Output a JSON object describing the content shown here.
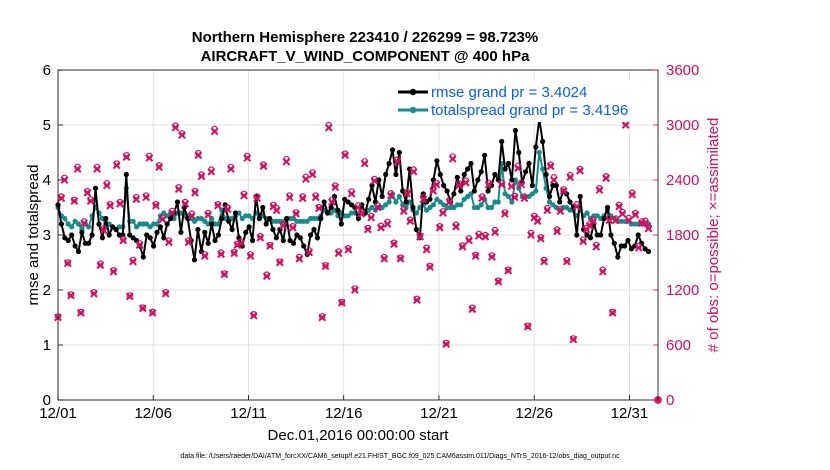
{
  "chart_data": {
    "type": "line",
    "title_line1": "Northern Hemisphere 223410 / 226299 = 98.723%",
    "title_line2": "AIRCRAFT_V_WIND_COMPONENT @ 400 hPa",
    "xlabel": "Dec.01,2016 00:00:00 start",
    "ylabel_left": "rmse and totalspread",
    "ylabel_right": "# of obs: o=possible; ×=assimilated",
    "footer": "data file: /Users/raeder/DAI/ATM_forcXX/CAM6_setup/f.e21.FHIST_BGC.f09_025.CAM6assim.011/Diags_NTrS_2016-12/obs_diag_output.nc",
    "xlim": [
      0,
      31.5
    ],
    "ylim_left": [
      0,
      6
    ],
    "ylim_right": [
      0,
      3600
    ],
    "x_ticks": [
      0,
      5,
      10,
      15,
      20,
      25,
      30
    ],
    "x_tick_labels": [
      "12/01",
      "12/06",
      "12/11",
      "12/16",
      "12/21",
      "12/26",
      "12/31"
    ],
    "y_left_ticks": [
      "0",
      "1",
      "2",
      "3",
      "4",
      "5",
      "6"
    ],
    "y_right_ticks": [
      "0",
      "600",
      "1200",
      "1800",
      "2400",
      "3000",
      "3600"
    ],
    "colors": {
      "rmse": "#000000",
      "spread": "#1a8a8a",
      "obs": "#d01060",
      "legend_text": "#0a5fe0"
    },
    "series": [
      {
        "name": "rmse grand pr = 3.4024",
        "axis": "left",
        "values": [
          3.55,
          3.2,
          2.95,
          2.9,
          3.0,
          2.8,
          2.7,
          3.05,
          2.85,
          2.85,
          3.0,
          3.85,
          3.2,
          2.95,
          3.3,
          3.0,
          3.15,
          3.1,
          3.0,
          3.0,
          4.1,
          3.0,
          2.95,
          2.9,
          2.8,
          2.6,
          3.0,
          2.95,
          2.8,
          3.05,
          3.15,
          2.95,
          3.2,
          3.3,
          3.4,
          3.6,
          3.05,
          3.5,
          3.3,
          2.9,
          2.55,
          3.1,
          2.7,
          3.05,
          2.85,
          3.2,
          2.9,
          3.0,
          3.3,
          3.55,
          3.25,
          3.1,
          3.4,
          2.95,
          2.8,
          3.05,
          3.15,
          2.9,
          3.7,
          3.3,
          3.5,
          3.2,
          3.3,
          3.1,
          2.95,
          3.1,
          2.9,
          3.3,
          2.9,
          2.85,
          3.0,
          2.95,
          2.8,
          2.65,
          3.0,
          3.1,
          2.95,
          3.3,
          3.6,
          3.4,
          3.5,
          3.7,
          3.45,
          3.2,
          3.65,
          3.6,
          3.55,
          3.5,
          3.3,
          3.55,
          3.4,
          3.65,
          3.9,
          3.6,
          4.0,
          3.7,
          4.1,
          4.3,
          4.55,
          4.1,
          4.5,
          3.8,
          3.6,
          4.2,
          3.5,
          3.1,
          2.95,
          3.75,
          3.6,
          3.65,
          4.0,
          4.35,
          4.1,
          3.9,
          3.8,
          3.6,
          3.75,
          4.05,
          3.8,
          4.1,
          4.2,
          4.3,
          3.8,
          4.0,
          4.15,
          4.45,
          3.8,
          3.9,
          4.1,
          4.0,
          4.7,
          4.2,
          4.3,
          4.0,
          4.9,
          4.5,
          3.95,
          4.15,
          4.3,
          3.9,
          4.6,
          5.1,
          4.7,
          4.1,
          3.7,
          3.9,
          3.9,
          3.6,
          3.8,
          3.75,
          3.6,
          3.5,
          3.0,
          3.7,
          3.1,
          3.0,
          2.95,
          3.2,
          3.0,
          3.0,
          3.3,
          3.5,
          3.0,
          2.85,
          2.6,
          2.8,
          2.8,
          2.9,
          2.75,
          2.8,
          3.0,
          2.85,
          2.75,
          2.7
        ]
      },
      {
        "name": "totalspread grand pr = 3.4196",
        "axis": "left",
        "values": [
          3.5,
          3.35,
          3.3,
          3.2,
          3.15,
          3.25,
          3.2,
          3.1,
          3.2,
          3.15,
          3.35,
          3.5,
          3.4,
          3.3,
          3.2,
          3.2,
          3.15,
          3.1,
          3.15,
          3.15,
          3.85,
          3.25,
          3.25,
          3.15,
          3.2,
          3.2,
          3.2,
          3.15,
          3.2,
          3.2,
          3.35,
          3.4,
          3.35,
          3.4,
          3.3,
          3.4,
          3.4,
          3.35,
          3.35,
          3.3,
          3.25,
          3.3,
          3.3,
          3.25,
          3.2,
          3.3,
          3.2,
          3.2,
          3.45,
          3.3,
          3.3,
          3.3,
          3.35,
          3.4,
          3.3,
          3.35,
          3.35,
          3.3,
          3.4,
          3.35,
          3.35,
          3.3,
          3.3,
          3.25,
          3.25,
          3.25,
          3.25,
          3.3,
          3.3,
          3.3,
          3.25,
          3.25,
          3.25,
          3.25,
          3.3,
          3.3,
          3.3,
          3.35,
          3.45,
          3.4,
          3.4,
          3.45,
          3.35,
          3.4,
          3.35,
          3.35,
          3.4,
          3.4,
          3.35,
          3.4,
          3.4,
          3.45,
          3.5,
          3.45,
          3.5,
          3.5,
          3.55,
          3.6,
          3.75,
          3.6,
          3.7,
          3.55,
          3.5,
          3.6,
          3.45,
          3.4,
          3.5,
          3.55,
          3.45,
          3.5,
          3.55,
          3.65,
          3.6,
          3.55,
          3.5,
          3.5,
          3.5,
          3.55,
          3.55,
          3.65,
          3.7,
          3.75,
          3.5,
          3.5,
          3.55,
          3.65,
          3.5,
          3.5,
          3.6,
          3.6,
          4.3,
          3.75,
          3.7,
          3.6,
          4.0,
          3.85,
          3.7,
          3.7,
          3.7,
          3.75,
          3.8,
          4.5,
          4.2,
          3.85,
          3.6,
          3.55,
          3.5,
          3.45,
          3.5,
          3.5,
          3.45,
          3.45,
          3.35,
          3.45,
          3.35,
          3.4,
          3.3,
          3.35,
          3.35,
          3.3,
          3.35,
          3.45,
          3.35,
          3.3,
          3.25,
          3.25,
          3.25,
          3.25,
          3.2,
          3.2,
          3.2,
          3.2,
          3.2,
          3.2
        ]
      },
      {
        "name": "obs_possible",
        "axis": "right",
        "values": [
          912,
          2220,
          2424,
          1500,
          1152,
          2184,
          2544,
          960,
          1950,
          2280,
          2190,
          1176,
          2544,
          1488,
          1872,
          2364,
          2136,
          1416,
          2580,
          2160,
          1758,
          2670,
          1140,
          1530,
          2214,
          1710,
          1008,
          2232,
          2664,
          960,
          2136,
          2562,
          1992,
          1176,
          1740,
          2064,
          2994,
          2322,
          2910,
          2160,
          1740,
          2034,
          2280,
          2694,
          2460,
          1590,
          2040,
          2514,
          2958,
          2136,
          1608,
          1380,
          2100,
          2544,
          1614,
          1704,
          1728,
          2250,
          2664,
          1590,
          936,
          2220,
          1788,
          2568,
          1368,
          1692,
          2130,
          2094,
          1512,
          1920,
          2628,
          2232,
          1896,
          2046,
          1560,
          2220,
          2436,
          1632,
          2484,
          2232,
          2106,
          912,
          1470,
          3000,
          2184,
          2340,
          1620,
          1068,
          2688,
          1656,
          2274,
          1218,
          2124,
          2052,
          2604,
          1878,
          2010,
          2412,
          2124,
          1902,
          1560,
          1944,
          2256,
          1716,
          2622,
          1554,
          2082,
          2268,
          1968,
          2514,
          1104,
          1794,
          2214,
          1662,
          1464,
          2304,
          2370,
          1896,
          2058,
          624,
          2178,
          2658,
          1914,
          2358,
          1686,
          2394,
          1764,
          1008,
          1584,
          1812,
          2220,
          1800,
          2370,
          1578,
          1854,
          1302,
          2370,
          2046,
          1422,
          2352,
          2226,
          2556,
          2370,
          2220,
          810,
          1824,
          2010,
          1974,
          1776,
          1530,
          2094,
          2568,
          2430,
          1860,
          2082,
          2298,
          1524,
          2454,
          672,
          2136,
          2520,
          1752,
          1878,
          1920,
          1968,
          1692,
          2310,
          1422,
          2442,
          1986,
          960,
          1980,
          2130,
          2052,
          3024,
          1986,
          2262,
          2040,
          1680,
          1950,
          1956,
          1890
        ]
      },
      {
        "name": "obs_assimilated",
        "axis": "right",
        "values": [
          900,
          2200,
          2400,
          1490,
          1140,
          2170,
          2520,
          950,
          1930,
          2260,
          2170,
          1160,
          2520,
          1470,
          1850,
          2340,
          2120,
          1400,
          2560,
          2140,
          1740,
          2650,
          1130,
          1510,
          2190,
          1690,
          1000,
          2210,
          2640,
          950,
          2120,
          2540,
          1970,
          1160,
          1720,
          2040,
          2970,
          2300,
          2890,
          2140,
          1720,
          2010,
          2260,
          2670,
          2440,
          1570,
          2020,
          2490,
          2930,
          2120,
          1590,
          1370,
          2080,
          2520,
          1600,
          1690,
          1710,
          2230,
          2640,
          1570,
          920,
          2200,
          1770,
          2550,
          1350,
          1680,
          2110,
          2070,
          1500,
          1900,
          2600,
          2210,
          1880,
          2030,
          1540,
          2200,
          2410,
          1610,
          2460,
          2210,
          2090,
          900,
          1460,
          2970,
          2160,
          2320,
          1600,
          1060,
          2670,
          1640,
          2250,
          1200,
          2100,
          2030,
          2580,
          1860,
          1990,
          2390,
          2100,
          1880,
          1540,
          1920,
          2230,
          1700,
          2600,
          1540,
          2060,
          2250,
          1950,
          2490,
          1090,
          1780,
          2190,
          1640,
          1450,
          2280,
          2350,
          1880,
          2040,
          610,
          2160,
          2630,
          1890,
          2340,
          1670,
          2370,
          1740,
          990,
          1570,
          1790,
          2200,
          1780,
          2350,
          1560,
          1830,
          1290,
          2350,
          2030,
          1410,
          2330,
          2210,
          2530,
          2350,
          2200,
          800,
          1800,
          1990,
          1950,
          1760,
          1510,
          2070,
          2550,
          2400,
          1840,
          2060,
          2280,
          1510,
          2430,
          660,
          2110,
          2500,
          1730,
          1860,
          1900,
          1950,
          1670,
          2290,
          1400,
          2420,
          1960,
          950,
          1960,
          2110,
          2030,
          3000,
          1960,
          2240,
          2020,
          1660,
          1930,
          1930,
          1870
        ]
      }
    ]
  }
}
